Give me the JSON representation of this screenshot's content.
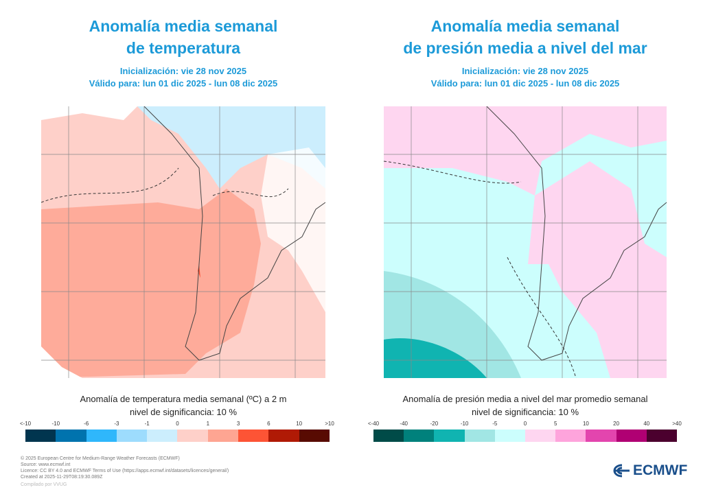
{
  "left": {
    "title_line1": "Anomalía media semanal",
    "title_line2": "de temperatura",
    "init": "Inicialización: vie 28 nov 2025",
    "valid": "Válido para: lun 01 dic 2025 - lun 08 dic 2025",
    "caption_line1": "Anomalía de temperatura media semanal (ºC) a 2 m",
    "caption_line2": "nivel de significancia: 10 %",
    "legend_labels": [
      "<-10",
      "-10",
      "-6",
      "-3",
      "-1",
      "0",
      "1",
      "3",
      "6",
      "10",
      ">10"
    ],
    "legend_colors": [
      "#01354f",
      "#0073ae",
      "#2fb7fb",
      "#9ddcfd",
      "#cceefd",
      "#fed0c9",
      "#fea592",
      "#fd5435",
      "#b01a05",
      "#580b02"
    ]
  },
  "right": {
    "title_line1": "Anomalía media semanal",
    "title_line2": "de presión media a nivel del mar",
    "init": "Inicialización: vie 28 nov 2025",
    "valid": "Válido para: lun 01 dic 2025 - lun 08 dic 2025",
    "caption_line1": "Anomalía de presión media a nivel del mar promedio semanal",
    "caption_line2": "nivel de significancia: 10 %",
    "legend_labels": [
      "<-40",
      "-40",
      "-20",
      "-10",
      "-5",
      "0",
      "5",
      "10",
      "20",
      "40",
      ">40"
    ],
    "legend_colors": [
      "#004b48",
      "#00817c",
      "#10b4b1",
      "#a1e6e4",
      "#ccfefd",
      "#fed6f0",
      "#fea4dc",
      "#e345ae",
      "#b00073",
      "#4b002e"
    ]
  },
  "footer": {
    "line1": "© 2025 European Centre for Medium-Range Weather Forecasts (ECMWF)",
    "line2": "Source: www.ecmwf.int",
    "line3": "Licence: CC BY 4.0 and ECMWF Terms of Use (https://apps.ecmwf.int/datasets/licences/general/)",
    "line4": "Created at 2025-11-29T08:19:30.089Z",
    "compiled": "Compilado por VVUG"
  },
  "logo": {
    "text": "ECMWF"
  }
}
